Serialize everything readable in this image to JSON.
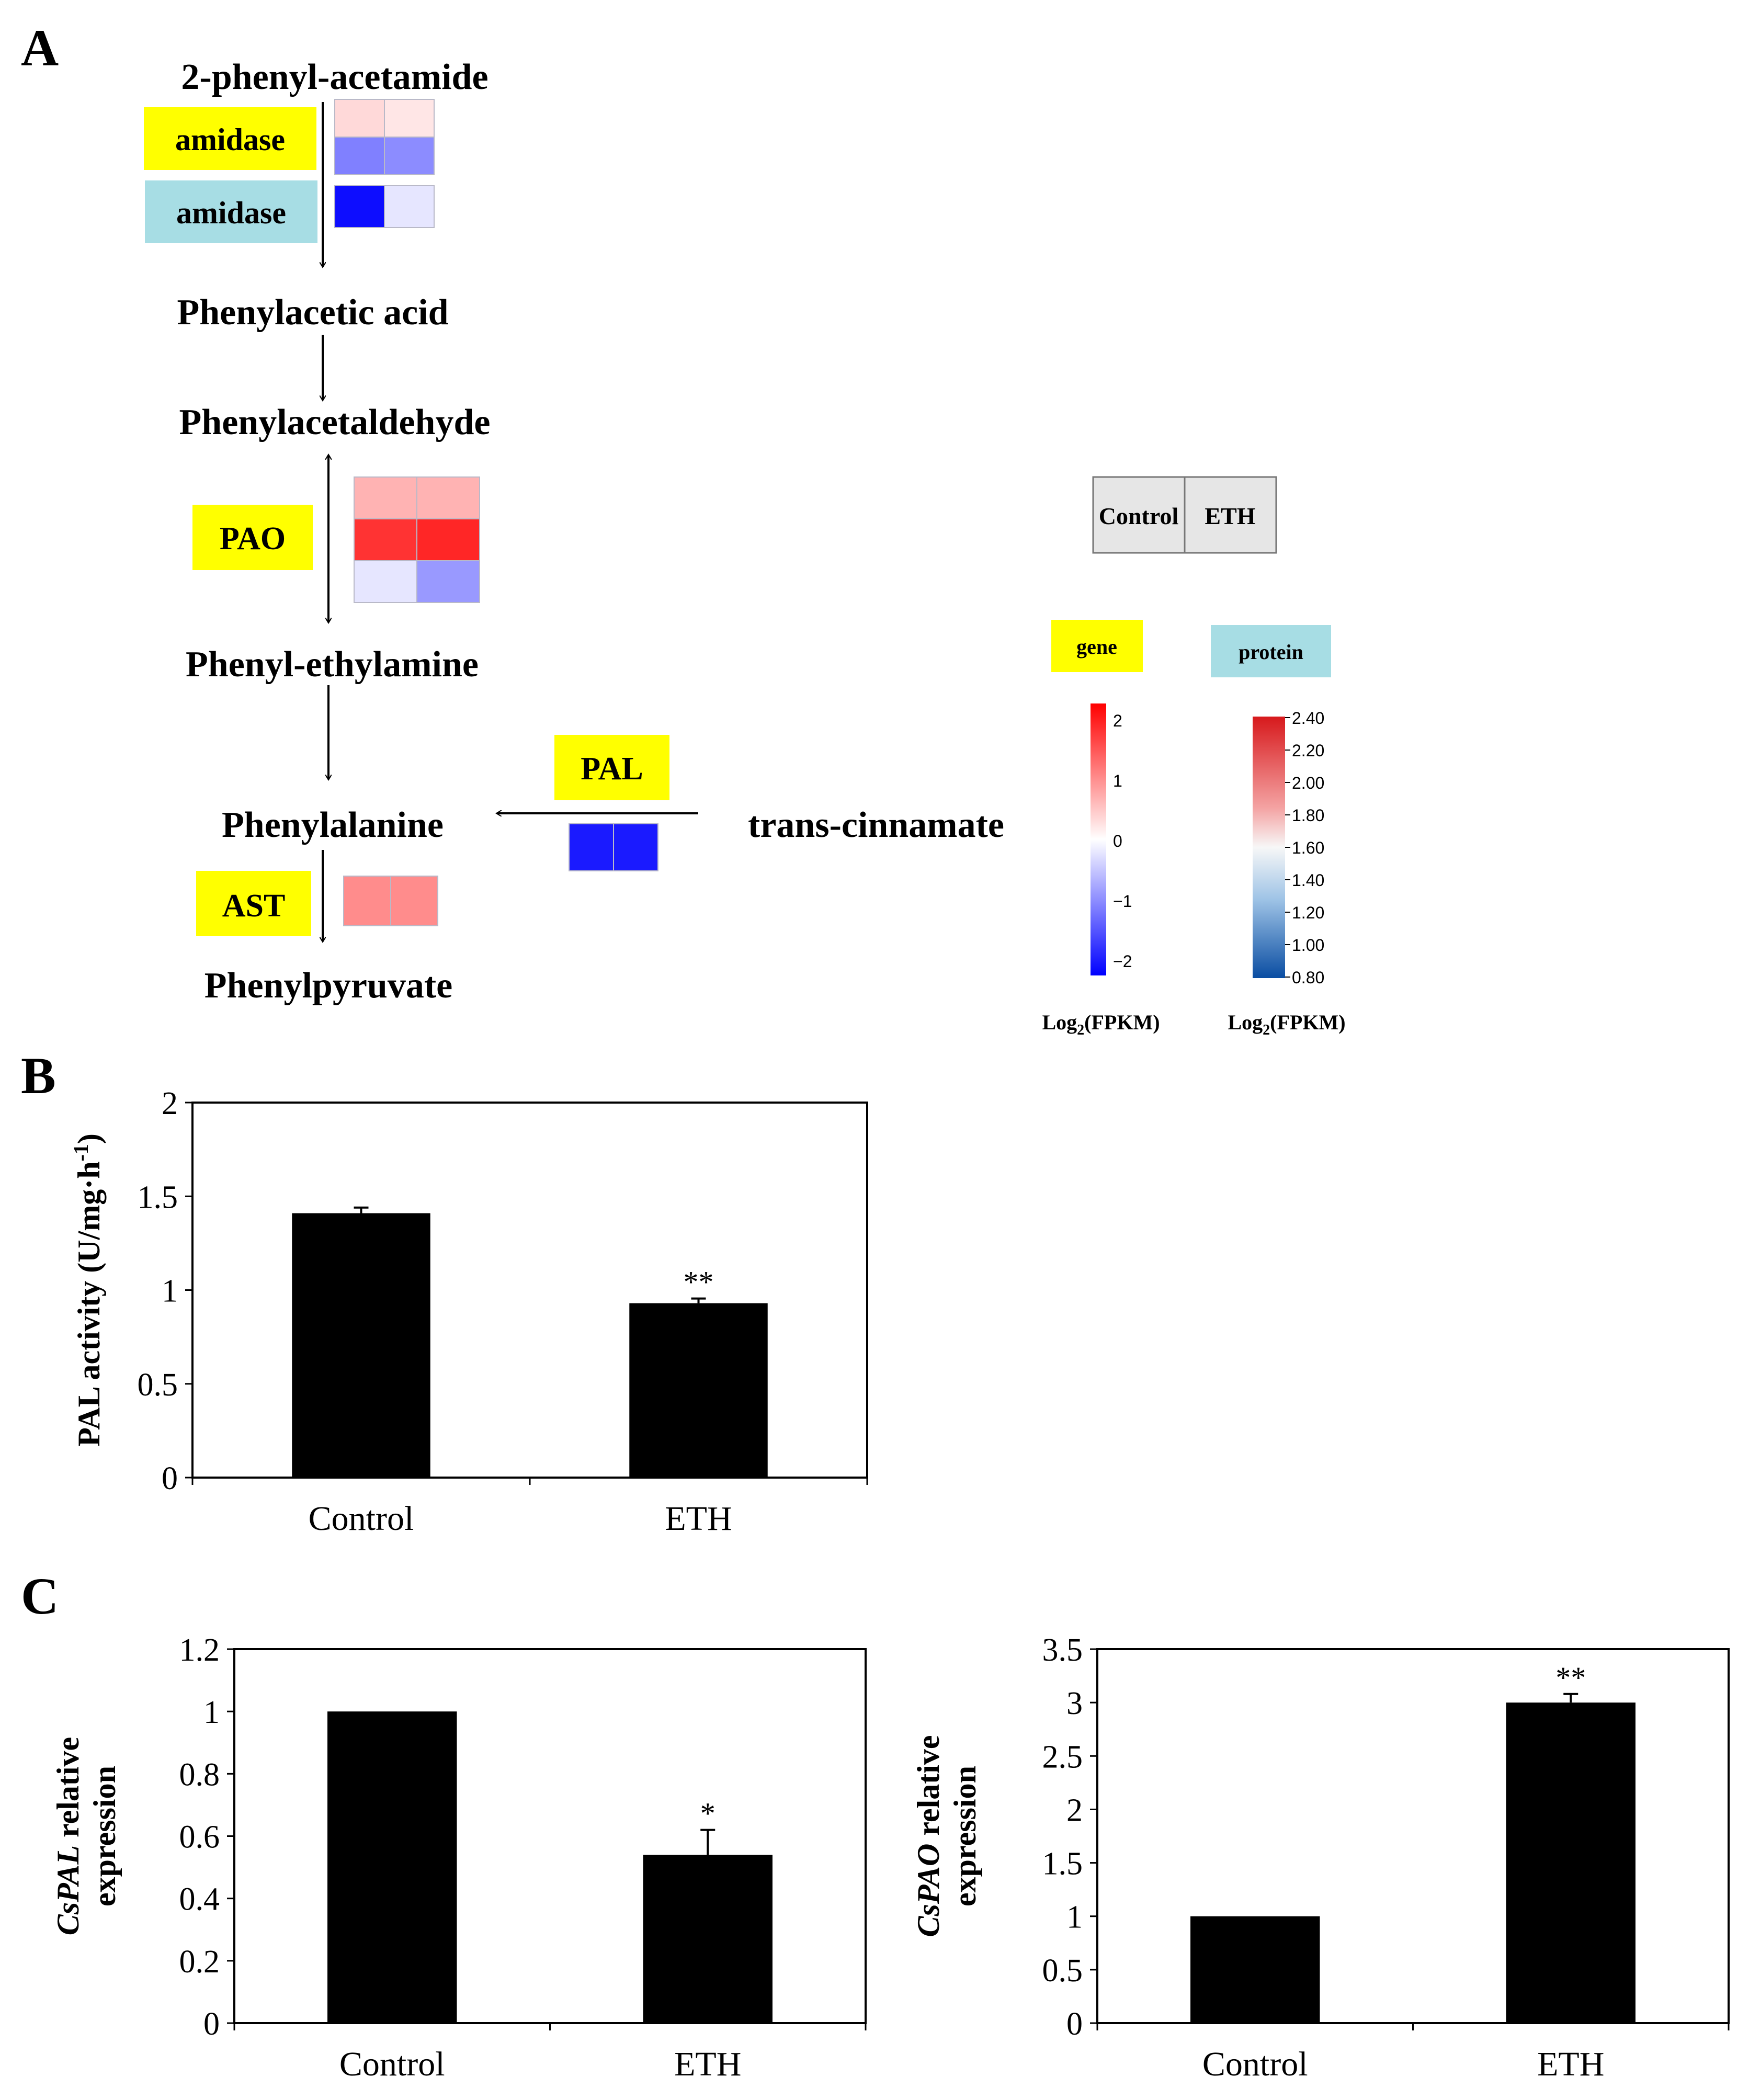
{
  "panel_labels": [
    "A",
    "B",
    "C"
  ],
  "colors": {
    "gene_label_bg": "#ffff00",
    "protein_label_bg": "#a7dde4",
    "heat_high": "#ff0000",
    "heat_mid": "#ffffff",
    "heat_low": "#0000ff",
    "protein_high": "#d7191c",
    "protein_low": "#0a4da2",
    "bar": "#000000",
    "legend_box": "#e6e6e6"
  },
  "pathway": {
    "metabolites": {
      "phenylacetamide": "2-phenyl-acetamide",
      "phenylacetic_acid": "Phenylacetic acid",
      "phenylacetaldehyde": "Phenylacetaldehyde",
      "phenylethylamine": "Phenyl-ethylamine",
      "phenylalanine": "Phenylalanine",
      "phenylpyruvate": "Phenylpyruvate",
      "trans_cinnamate": "trans-cinnamate"
    },
    "enzymes": {
      "amidase_gene": {
        "label": "amidase",
        "kind": "gene",
        "heat": [
          [
            0.3,
            0.2
          ],
          [
            -1.0,
            -0.9
          ]
        ]
      },
      "amidase_protein": {
        "label": "amidase",
        "kind": "protein",
        "heat": [
          [
            -1.9,
            -0.2
          ]
        ]
      },
      "pao": {
        "label": "PAO",
        "kind": "gene",
        "heat": [
          [
            0.6,
            0.6
          ],
          [
            1.6,
            1.7
          ],
          [
            -0.2,
            -0.8
          ]
        ]
      },
      "pal": {
        "label": "PAL",
        "kind": "gene",
        "heat": [
          [
            -1.8,
            -1.8
          ]
        ]
      },
      "ast": {
        "label": "AST",
        "kind": "gene",
        "heat": [
          [
            0.9,
            0.9
          ]
        ]
      }
    },
    "legend": {
      "sample_control": "Control",
      "sample_eth": "ETH",
      "gene_label": "gene",
      "protein_label": "protein",
      "gene_ticks": [
        "2",
        "1",
        "0",
        "−1",
        "−2"
      ],
      "protein_ticks": [
        "2.40",
        "2.20",
        "2.00",
        "1.80",
        "1.60",
        "1.40",
        "1.20",
        "1.00",
        "0.80"
      ],
      "axis_title_prefix": "Log",
      "axis_title_sub": "2",
      "axis_title_suffix": "(FPKM)"
    }
  },
  "chart_data": [
    {
      "panel": "B",
      "type": "bar",
      "categories": [
        "Control",
        "ETH"
      ],
      "values": [
        1.41,
        0.93
      ],
      "errors": [
        0.03,
        0.025
      ],
      "significance": [
        "",
        "**"
      ],
      "ylabel_main": "PAL activity (U/mg·h",
      "ylabel_sup": "-1",
      "ylabel_end": ")",
      "ylim": [
        0,
        2
      ],
      "yticks": [
        "0",
        "0.5",
        "1",
        "1.5",
        "2"
      ]
    },
    {
      "panel": "C-left",
      "type": "bar",
      "categories": [
        "Control",
        "ETH"
      ],
      "values": [
        1.0,
        0.54
      ],
      "errors": [
        0,
        0.08
      ],
      "significance": [
        "",
        "*"
      ],
      "ylabel_italic": "CsPAL",
      "ylabel_rest": " relative",
      "ylabel_line2": "expression",
      "ylim": [
        0,
        1.2
      ],
      "yticks": [
        "0",
        "0.2",
        "0.4",
        "0.6",
        "0.8",
        "1",
        "1.2"
      ]
    },
    {
      "panel": "C-right",
      "type": "bar",
      "categories": [
        "Control",
        "ETH"
      ],
      "values": [
        1.0,
        3.0
      ],
      "errors": [
        0,
        0.08
      ],
      "significance": [
        "",
        "**"
      ],
      "ylabel_italic": "CsPAO",
      "ylabel_rest": " relative",
      "ylabel_line2": "expression",
      "ylim": [
        0,
        3.5
      ],
      "yticks": [
        "0",
        "0.5",
        "1",
        "1.5",
        "2",
        "2.5",
        "3",
        "3.5"
      ]
    }
  ]
}
